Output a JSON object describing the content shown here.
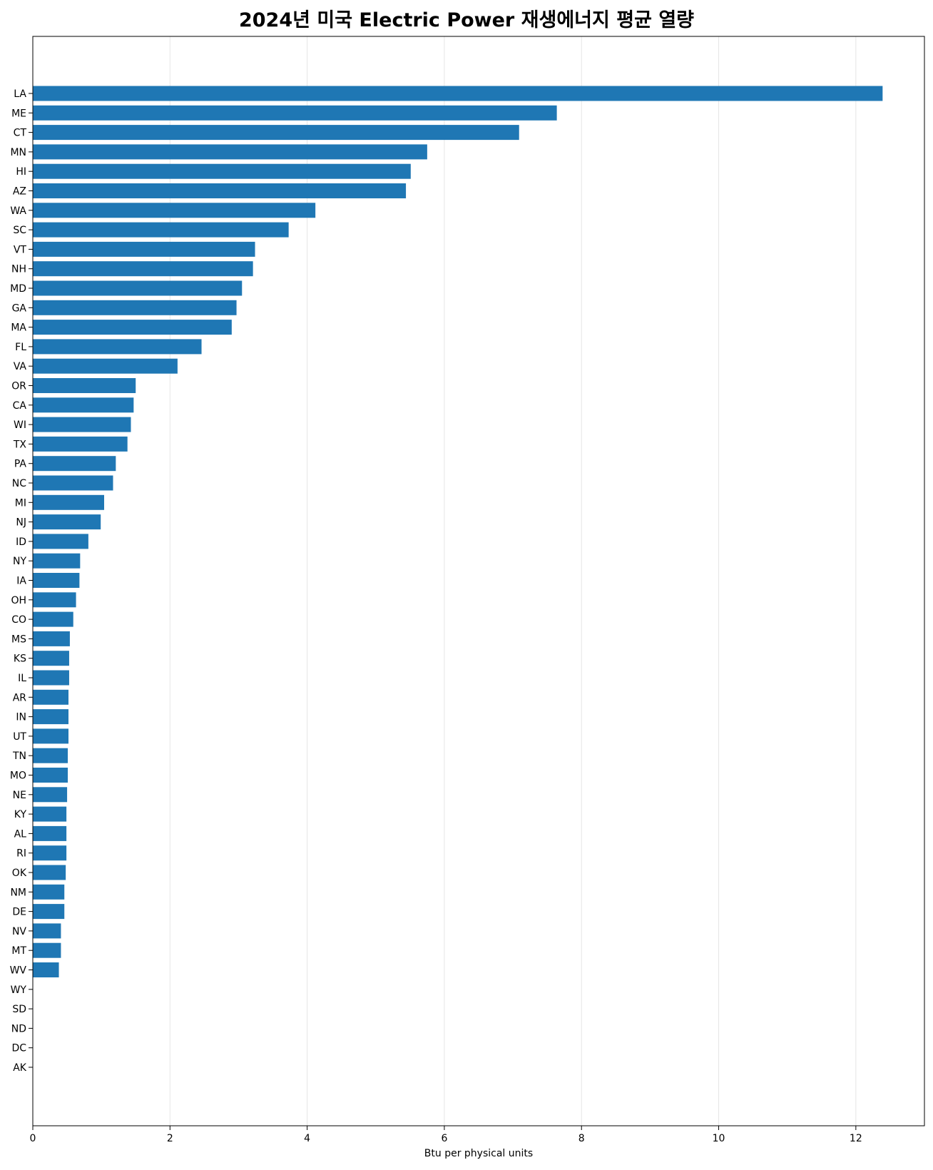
{
  "chart_data": {
    "type": "bar",
    "orientation": "horizontal",
    "title": "2024년 미국 Electric Power 재생에너지 평균 열량",
    "xlabel": "Btu per physical units",
    "ylabel": "",
    "xlim": [
      0,
      13
    ],
    "xticks": [
      0,
      2,
      4,
      6,
      8,
      10,
      12
    ],
    "grid": "vertical",
    "bar_color": "#1f77b4",
    "categories": [
      "LA",
      "ME",
      "CT",
      "MN",
      "HI",
      "AZ",
      "WA",
      "SC",
      "VT",
      "NH",
      "MD",
      "GA",
      "MA",
      "FL",
      "VA",
      "OR",
      "CA",
      "WI",
      "TX",
      "PA",
      "NC",
      "MI",
      "NJ",
      "ID",
      "NY",
      "IA",
      "OH",
      "CO",
      "MS",
      "KS",
      "IL",
      "AR",
      "IN",
      "UT",
      "TN",
      "MO",
      "NE",
      "KY",
      "AL",
      "RI",
      "OK",
      "NM",
      "DE",
      "NV",
      "MT",
      "WV",
      "WY",
      "SD",
      "ND",
      "DC",
      "AK"
    ],
    "values": [
      12.39,
      7.64,
      7.09,
      5.75,
      5.51,
      5.44,
      4.12,
      3.73,
      3.24,
      3.21,
      3.05,
      2.97,
      2.9,
      2.46,
      2.11,
      1.5,
      1.47,
      1.43,
      1.38,
      1.21,
      1.17,
      1.04,
      0.99,
      0.81,
      0.69,
      0.68,
      0.63,
      0.59,
      0.54,
      0.53,
      0.53,
      0.52,
      0.52,
      0.52,
      0.51,
      0.51,
      0.5,
      0.49,
      0.49,
      0.49,
      0.48,
      0.46,
      0.46,
      0.41,
      0.41,
      0.38,
      0,
      0,
      0,
      0,
      0
    ]
  }
}
